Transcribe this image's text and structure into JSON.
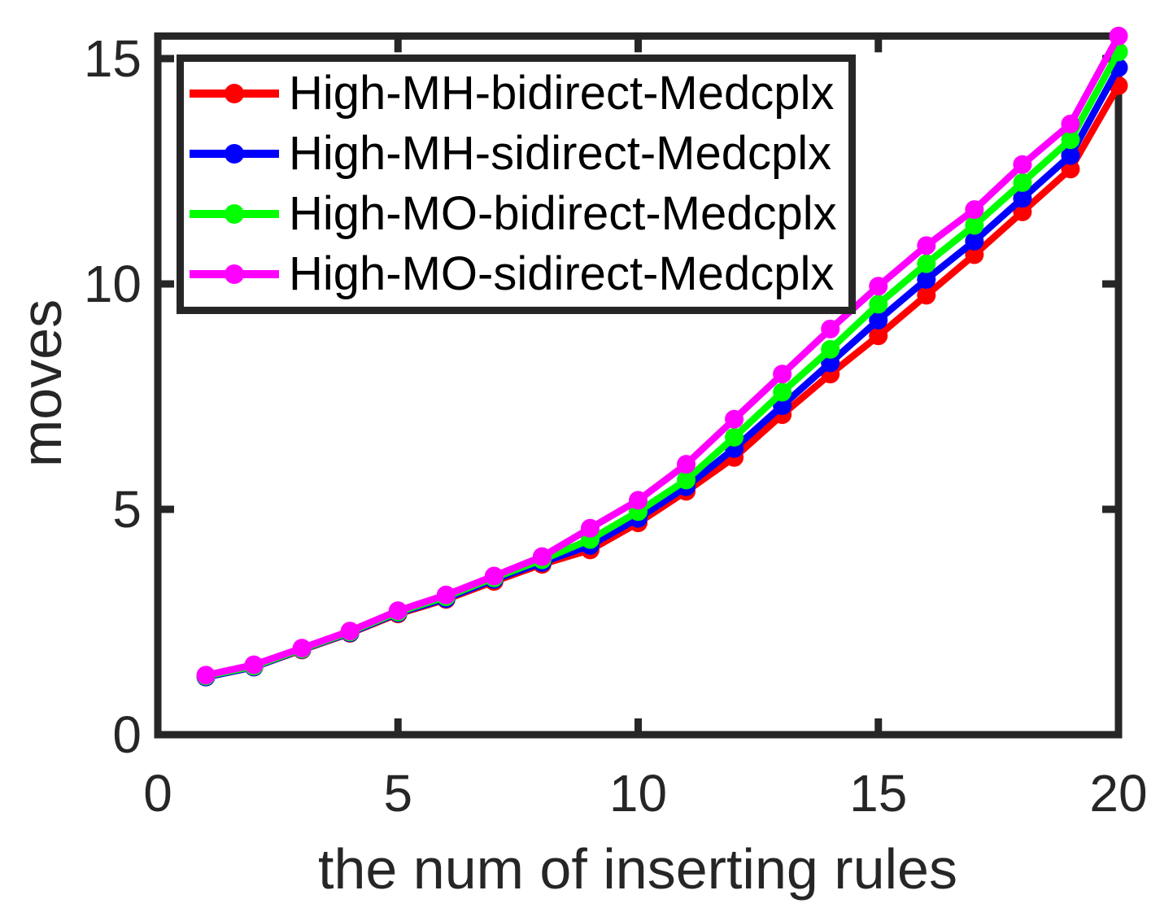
{
  "figure": {
    "background": "#ffffff",
    "axis_color": "#262626",
    "tick_label_color": "#262626",
    "legend_text_color": "#000000"
  },
  "chart_data": {
    "type": "line",
    "title": "",
    "xlabel": "the num of inserting rules",
    "ylabel": "moves",
    "xlim": [
      0,
      20
    ],
    "ylim": [
      0,
      15.5
    ],
    "x_ticks": [
      "0",
      "5",
      "10",
      "15",
      "20"
    ],
    "x_tick_values": [
      0,
      5,
      10,
      15,
      20
    ],
    "y_ticks": [
      "0",
      "5",
      "10",
      "15"
    ],
    "y_tick_values": [
      0,
      5,
      10,
      15
    ],
    "grid": false,
    "legend_position": "top-left-inside",
    "marker": "circle",
    "x": [
      1,
      2,
      3,
      4,
      5,
      6,
      7,
      8,
      9,
      10,
      11,
      12,
      13,
      14,
      15,
      16,
      17,
      18,
      19,
      20
    ],
    "series": [
      {
        "name": "High-MH-bidirect-Medcplx",
        "color": "#ff0000",
        "values": [
          1.28,
          1.5,
          1.88,
          2.25,
          2.68,
          3.0,
          3.4,
          3.78,
          4.1,
          4.7,
          5.4,
          6.15,
          7.1,
          8.0,
          8.85,
          9.75,
          10.65,
          11.6,
          12.55,
          14.4
        ]
      },
      {
        "name": "High-MH-sidirect-Medcplx",
        "color": "#0000ff",
        "values": [
          1.28,
          1.5,
          1.89,
          2.26,
          2.7,
          3.02,
          3.44,
          3.82,
          4.2,
          4.8,
          5.5,
          6.35,
          7.3,
          8.25,
          9.2,
          10.1,
          10.95,
          11.9,
          12.85,
          14.8
        ]
      },
      {
        "name": "High-MO-bidirect-Medcplx",
        "color": "#00ff00",
        "values": [
          1.3,
          1.52,
          1.9,
          2.28,
          2.72,
          3.06,
          3.48,
          3.88,
          4.33,
          4.95,
          5.65,
          6.6,
          7.6,
          8.55,
          9.55,
          10.45,
          11.3,
          12.25,
          13.2,
          15.15
        ]
      },
      {
        "name": "High-MO-sidirect-Medcplx",
        "color": "#ff00ff",
        "values": [
          1.32,
          1.55,
          1.92,
          2.3,
          2.75,
          3.1,
          3.52,
          3.95,
          4.58,
          5.2,
          6.0,
          7.0,
          8.0,
          9.0,
          9.95,
          10.85,
          11.65,
          12.65,
          13.55,
          15.5
        ]
      }
    ]
  }
}
